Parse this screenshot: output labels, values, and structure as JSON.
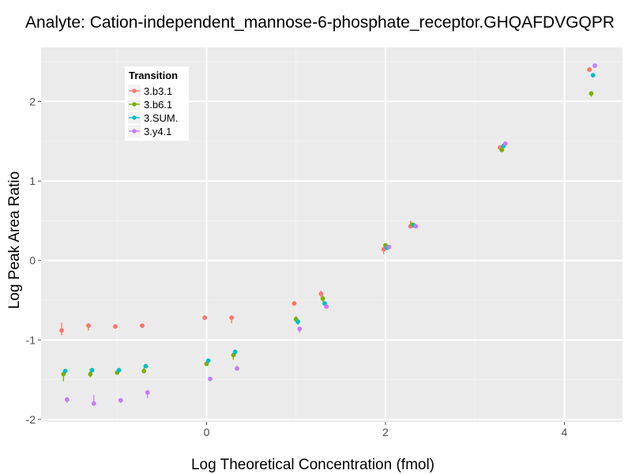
{
  "chart_data": {
    "type": "scatter",
    "title": "Analyte: Cation-independent_mannose-6-phosphate_receptor.GHQAFDVGQPR",
    "xlabel": "Log Theoretical Concentration (fmol)",
    "ylabel": "Log Peak Area Ratio",
    "xlim": [
      -1.85,
      4.65
    ],
    "ylim": [
      -2.03,
      2.68
    ],
    "x_ticks": [
      0,
      2,
      4
    ],
    "y_ticks": [
      -2,
      -1,
      0,
      1,
      2
    ],
    "x_tick_labels": [
      "0",
      "2",
      "4"
    ],
    "y_tick_labels": [
      "-2",
      "-1",
      "0",
      "1",
      "2"
    ],
    "grid": true,
    "legend": {
      "title": "Transition",
      "position": "top-left-inside"
    },
    "series": [
      {
        "name": "3.b3.1",
        "color": "#F8766D",
        "points": [
          {
            "x": -1.62,
            "y": -0.88,
            "lo": -0.94,
            "hi": -0.78
          },
          {
            "x": -1.32,
            "y": -0.82,
            "lo": -0.88,
            "hi": -0.79
          },
          {
            "x": -1.02,
            "y": -0.83,
            "lo": -0.84,
            "hi": -0.82
          },
          {
            "x": -0.72,
            "y": -0.82,
            "lo": -0.85,
            "hi": -0.81
          },
          {
            "x": -0.02,
            "y": -0.72,
            "lo": -0.75,
            "hi": -0.71
          },
          {
            "x": 0.28,
            "y": -0.72,
            "lo": -0.79,
            "hi": -0.7
          },
          {
            "x": 0.98,
            "y": -0.54,
            "lo": -0.55,
            "hi": -0.53
          },
          {
            "x": 1.28,
            "y": -0.42,
            "lo": -0.46,
            "hi": -0.38
          },
          {
            "x": 1.98,
            "y": 0.14,
            "lo": 0.08,
            "hi": 0.17
          },
          {
            "x": 2.28,
            "y": 0.43,
            "lo": 0.41,
            "hi": 0.5
          },
          {
            "x": 3.28,
            "y": 1.42,
            "lo": 1.4,
            "hi": 1.44
          },
          {
            "x": 4.28,
            "y": 2.4,
            "lo": 2.38,
            "hi": 2.42
          }
        ]
      },
      {
        "name": "3.b6.1",
        "color": "#7CAE00",
        "points": [
          {
            "x": -1.6,
            "y": -1.43,
            "lo": -1.52,
            "hi": -1.4
          },
          {
            "x": -1.3,
            "y": -1.43,
            "lo": -1.47,
            "hi": -1.36
          },
          {
            "x": -1.0,
            "y": -1.41,
            "lo": -1.43,
            "hi": -1.38
          },
          {
            "x": -0.7,
            "y": -1.39,
            "lo": -1.42,
            "hi": -1.35
          },
          {
            "x": 0.0,
            "y": -1.3,
            "lo": -1.33,
            "hi": -1.27
          },
          {
            "x": 0.3,
            "y": -1.19,
            "lo": -1.25,
            "hi": -1.16
          },
          {
            "x": 1.0,
            "y": -0.74,
            "lo": -0.78,
            "hi": -0.7
          },
          {
            "x": 1.3,
            "y": -0.48,
            "lo": -0.52,
            "hi": -0.44
          },
          {
            "x": 2.0,
            "y": 0.19,
            "lo": 0.17,
            "hi": 0.21
          },
          {
            "x": 2.3,
            "y": 0.45,
            "lo": 0.43,
            "hi": 0.48
          },
          {
            "x": 3.3,
            "y": 1.39,
            "lo": 1.37,
            "hi": 1.41
          },
          {
            "x": 4.3,
            "y": 2.1,
            "lo": 2.06,
            "hi": 2.13
          }
        ]
      },
      {
        "name": "3.SUM.",
        "color": "#00BFC4",
        "points": [
          {
            "x": -1.58,
            "y": -1.39,
            "lo": -1.42,
            "hi": -1.37
          },
          {
            "x": -1.28,
            "y": -1.38,
            "lo": -1.4,
            "hi": -1.36
          },
          {
            "x": -0.98,
            "y": -1.38,
            "lo": -1.4,
            "hi": -1.37
          },
          {
            "x": -0.68,
            "y": -1.33,
            "lo": -1.35,
            "hi": -1.32
          },
          {
            "x": 0.02,
            "y": -1.26,
            "lo": -1.28,
            "hi": -1.24
          },
          {
            "x": 0.32,
            "y": -1.15,
            "lo": -1.18,
            "hi": -1.13
          },
          {
            "x": 1.02,
            "y": -0.77,
            "lo": -0.81,
            "hi": -0.74
          },
          {
            "x": 1.32,
            "y": -0.54,
            "lo": -0.57,
            "hi": -0.52
          },
          {
            "x": 2.02,
            "y": 0.16,
            "lo": 0.14,
            "hi": 0.18
          },
          {
            "x": 2.32,
            "y": 0.44,
            "lo": 0.42,
            "hi": 0.46
          },
          {
            "x": 3.32,
            "y": 1.44,
            "lo": 1.42,
            "hi": 1.46
          },
          {
            "x": 4.32,
            "y": 2.33,
            "lo": 2.31,
            "hi": 2.35
          }
        ]
      },
      {
        "name": "3.y4.1",
        "color": "#C77CFF",
        "points": [
          {
            "x": -1.56,
            "y": -1.75,
            "lo": -1.79,
            "hi": -1.72
          },
          {
            "x": -1.26,
            "y": -1.8,
            "lo": -1.82,
            "hi": -1.69
          },
          {
            "x": -0.96,
            "y": -1.76,
            "lo": -1.79,
            "hi": -1.73
          },
          {
            "x": -0.66,
            "y": -1.66,
            "lo": -1.73,
            "hi": -1.63
          },
          {
            "x": 0.04,
            "y": -1.49,
            "lo": -1.5,
            "hi": -1.48
          },
          {
            "x": 0.34,
            "y": -1.36,
            "lo": -1.38,
            "hi": -1.32
          },
          {
            "x": 1.04,
            "y": -0.86,
            "lo": -0.91,
            "hi": -0.83
          },
          {
            "x": 1.34,
            "y": -0.58,
            "lo": -0.6,
            "hi": -0.55
          },
          {
            "x": 2.04,
            "y": 0.17,
            "lo": 0.15,
            "hi": 0.19
          },
          {
            "x": 2.34,
            "y": 0.43,
            "lo": 0.41,
            "hi": 0.45
          },
          {
            "x": 3.34,
            "y": 1.47,
            "lo": 1.45,
            "hi": 1.49
          },
          {
            "x": 4.34,
            "y": 2.45,
            "lo": 2.43,
            "hi": 2.47
          }
        ]
      }
    ]
  }
}
